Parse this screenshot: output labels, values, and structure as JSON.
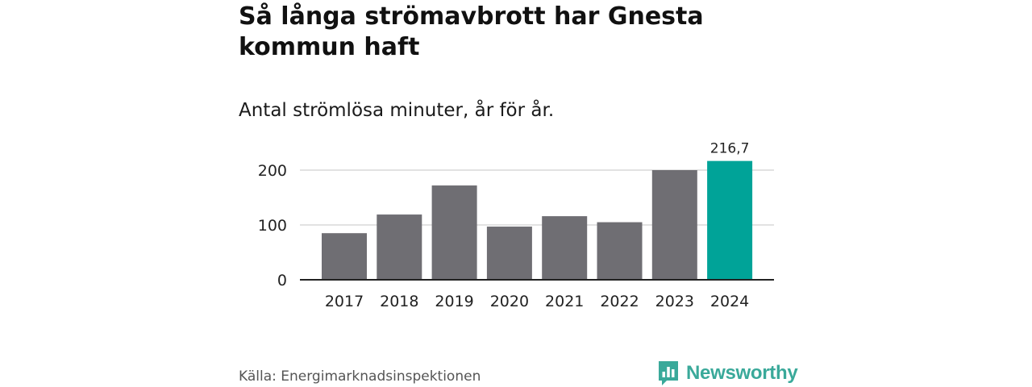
{
  "header": {
    "title": "Så långa strömavbrott har Gnesta kommun haft",
    "subtitle": "Antal strömlösa minuter, år för år."
  },
  "chart_data": {
    "type": "bar",
    "title": "Så långa strömavbrott har Gnesta kommun haft",
    "subtitle": "Antal strömlösa minuter, år för år.",
    "xlabel": "",
    "ylabel": "",
    "categories": [
      "2017",
      "2018",
      "2019",
      "2020",
      "2021",
      "2022",
      "2023",
      "2024"
    ],
    "values": [
      85,
      119,
      172,
      97,
      116,
      105,
      200,
      216.7
    ],
    "highlight_index": 7,
    "highlight_label": "216,7",
    "ylim": [
      0,
      200
    ],
    "yticks": [
      0,
      100,
      200
    ],
    "ytick_labels": [
      "0",
      "100",
      "200"
    ],
    "grid": true,
    "colors": {
      "bar": "#6f6e73",
      "highlight": "#00a398",
      "grid": "#d9d9d9",
      "axis": "#222222"
    }
  },
  "footer": {
    "source": "Källa: Energimarknadsinspektionen",
    "brand": "Newsworthy",
    "brand_icon": "bar-chart-speech-icon",
    "brand_color": "#3aa99a"
  }
}
